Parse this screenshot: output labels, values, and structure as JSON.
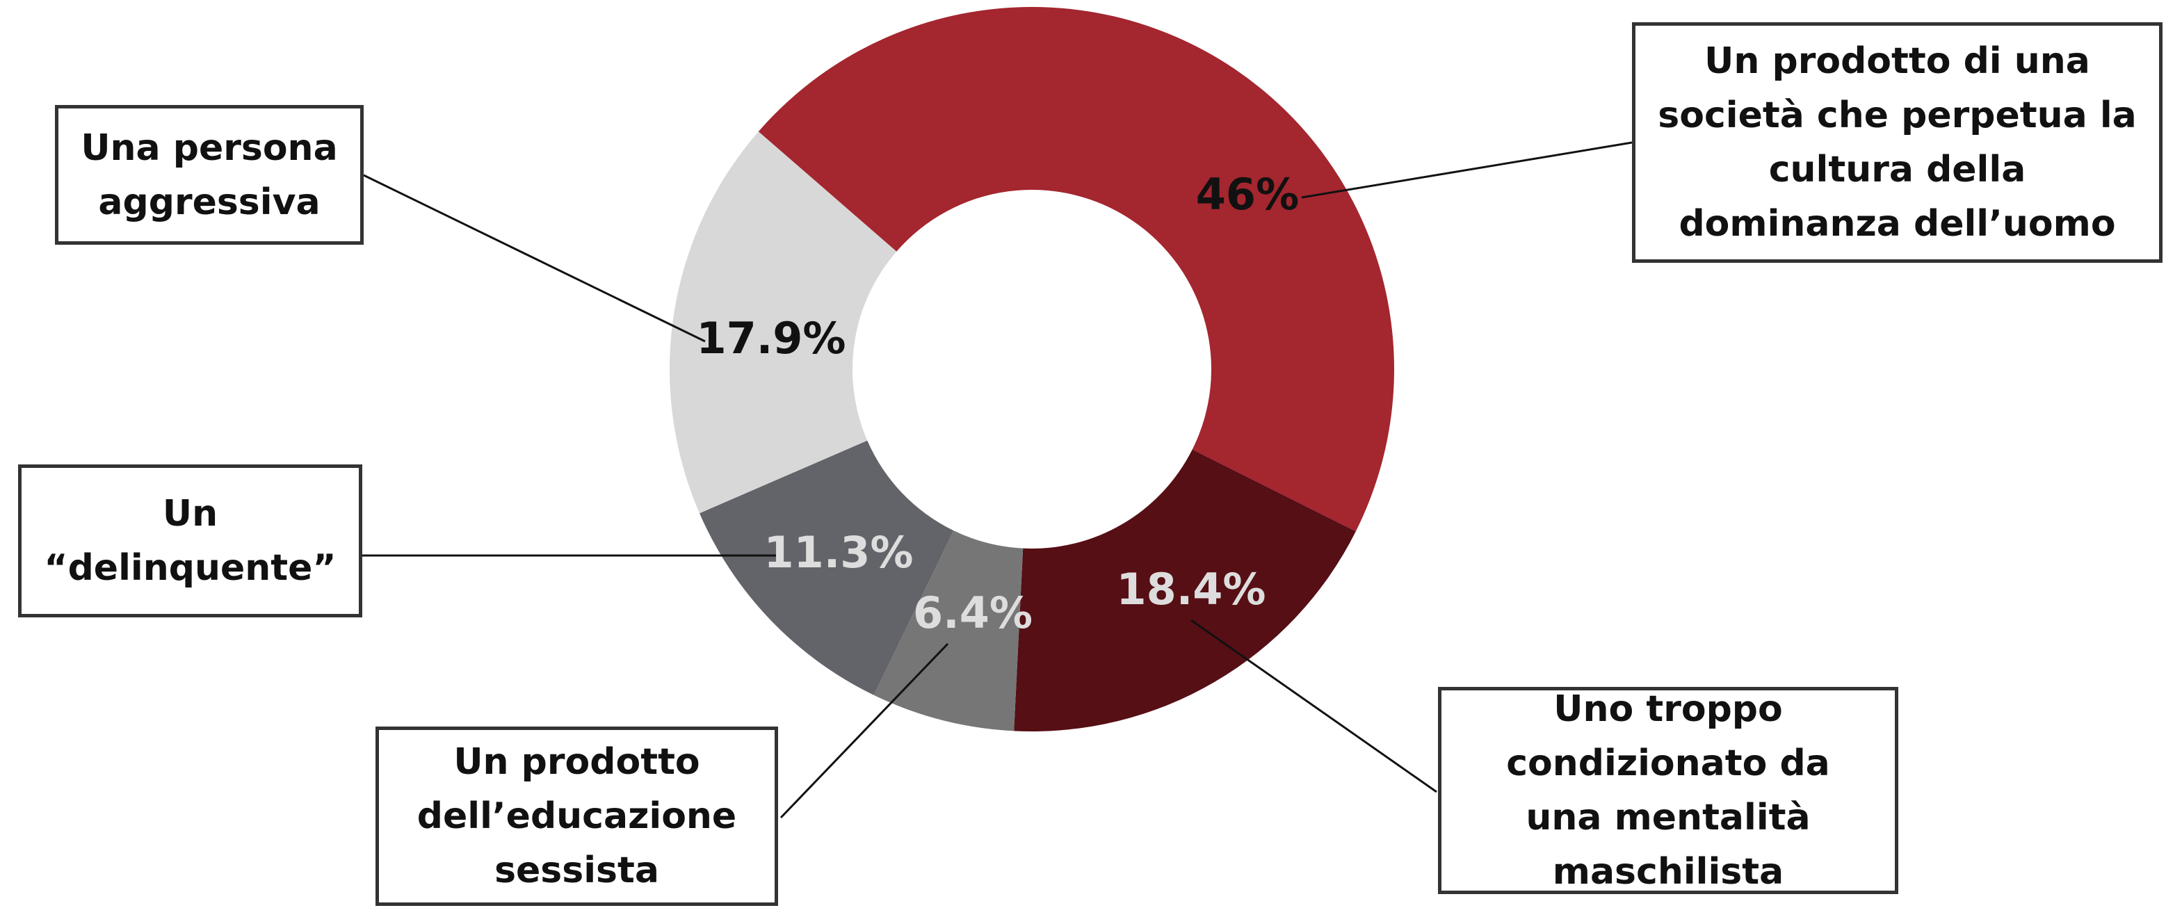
{
  "chart_data": {
    "type": "donut",
    "categories": [
      "Un prodotto di una società che perpetua la cultura della dominanza dell’uomo",
      "Uno troppo condizionato da una mentalità maschilista",
      "Un prodotto dell’educazione sessista",
      "Un “delinquente”",
      "Una persona aggressiva"
    ],
    "values": [
      46,
      18.4,
      6.4,
      11.3,
      17.9
    ],
    "value_labels": [
      "46%",
      "18.4%",
      "6.4%",
      "11.3%",
      "17.9%"
    ],
    "colors": [
      "#a4262f",
      "#560f14",
      "#767676",
      "#626469",
      "#d8d8d8"
    ],
    "label_colors": [
      "#111111",
      "#dddddd",
      "#dddddd",
      "#dddddd",
      "#111111"
    ]
  }
}
